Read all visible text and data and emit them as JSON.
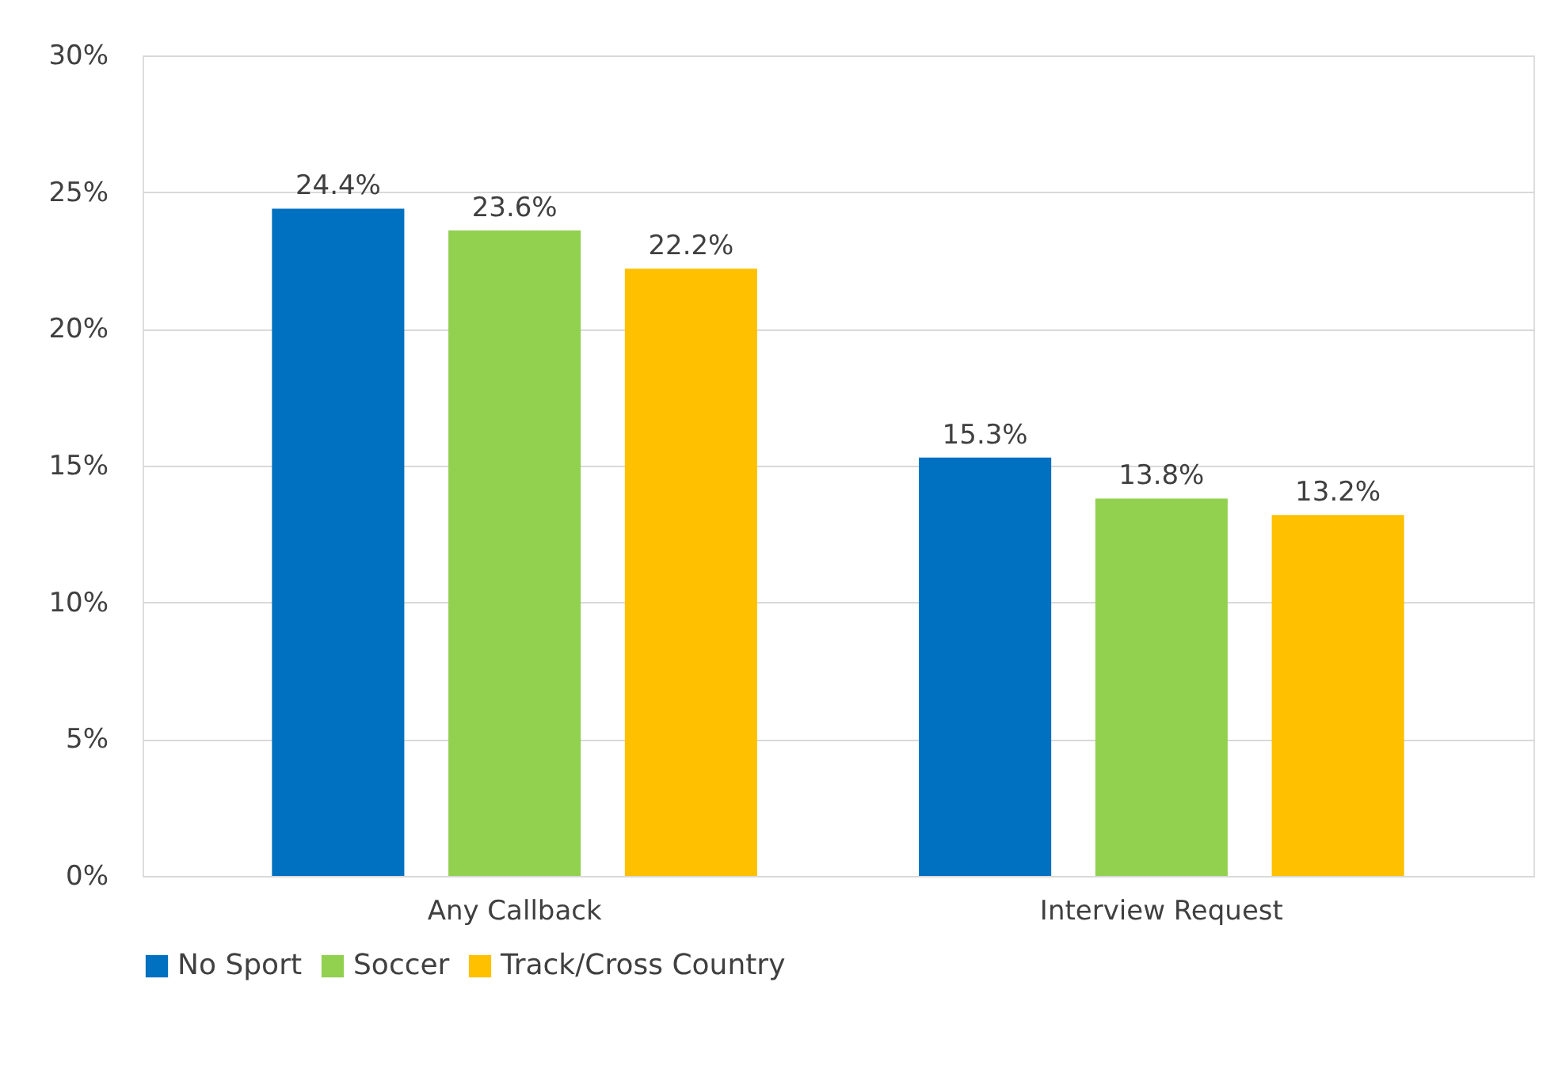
{
  "chart_data": {
    "type": "bar",
    "categories": [
      "Any Callback",
      "Interview Request"
    ],
    "series": [
      {
        "name": "No Sport",
        "color": "#0070c0",
        "values": [
          24.4,
          15.3
        ],
        "value_labels": [
          "24.4%",
          "15.3%"
        ]
      },
      {
        "name": "Soccer",
        "color": "#92d050",
        "values": [
          23.6,
          13.8
        ],
        "value_labels": [
          "23.6%",
          "13.8%"
        ]
      },
      {
        "name": "Track/Cross Country",
        "color": "#ffc000",
        "values": [
          22.2,
          13.2
        ],
        "value_labels": [
          "22.2%",
          "13.2%"
        ]
      }
    ],
    "ylim": [
      0,
      30
    ],
    "yticks": [
      {
        "value": 0,
        "label": "0%"
      },
      {
        "value": 5,
        "label": "5%"
      },
      {
        "value": 10,
        "label": "10%"
      },
      {
        "value": 15,
        "label": "15%"
      },
      {
        "value": 20,
        "label": "20%"
      },
      {
        "value": 25,
        "label": "25%"
      },
      {
        "value": 30,
        "label": "30%"
      }
    ],
    "grid": "y",
    "legend": "bottom"
  }
}
